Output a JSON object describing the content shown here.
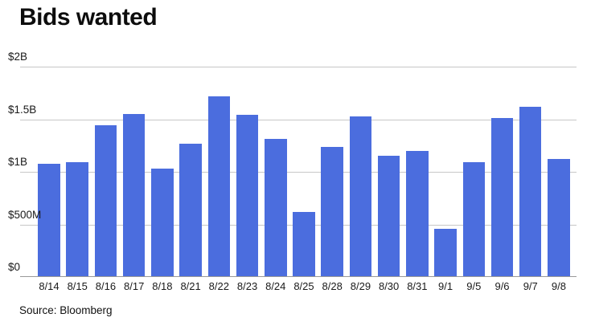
{
  "title": "Bids wanted",
  "source": "Source: Bloomberg",
  "colors": {
    "bar": "#4B6DDE",
    "gridline": "#C7C7C7",
    "baseline": "#999999",
    "text": "#1A1A1A"
  },
  "chart_data": {
    "type": "bar",
    "title": "Bids wanted",
    "categories": [
      "8/14",
      "8/15",
      "8/16",
      "8/17",
      "8/18",
      "8/21",
      "8/22",
      "8/23",
      "8/24",
      "8/25",
      "8/28",
      "8/29",
      "8/30",
      "8/31",
      "9/1",
      "9/5",
      "9/6",
      "9/7",
      "9/8"
    ],
    "values": [
      1.08,
      1.09,
      1.44,
      1.55,
      1.03,
      1.27,
      1.72,
      1.54,
      1.31,
      0.62,
      1.24,
      1.53,
      1.15,
      1.2,
      0.46,
      1.09,
      1.51,
      1.62,
      1.12
    ],
    "values_unit": "billions of dollars",
    "xlabel": "",
    "ylabel": "",
    "ylim": [
      0,
      2
    ],
    "y_ticks": [
      {
        "label": "$2B",
        "value": 2
      },
      {
        "label": "$1.5B",
        "value": 1.5
      },
      {
        "label": "$1B",
        "value": 1
      },
      {
        "label": "$500M",
        "value": 0.5
      },
      {
        "label": "$0",
        "value": 0
      }
    ],
    "grid": "horizontal",
    "legend": "none",
    "source": "Source: Bloomberg"
  }
}
